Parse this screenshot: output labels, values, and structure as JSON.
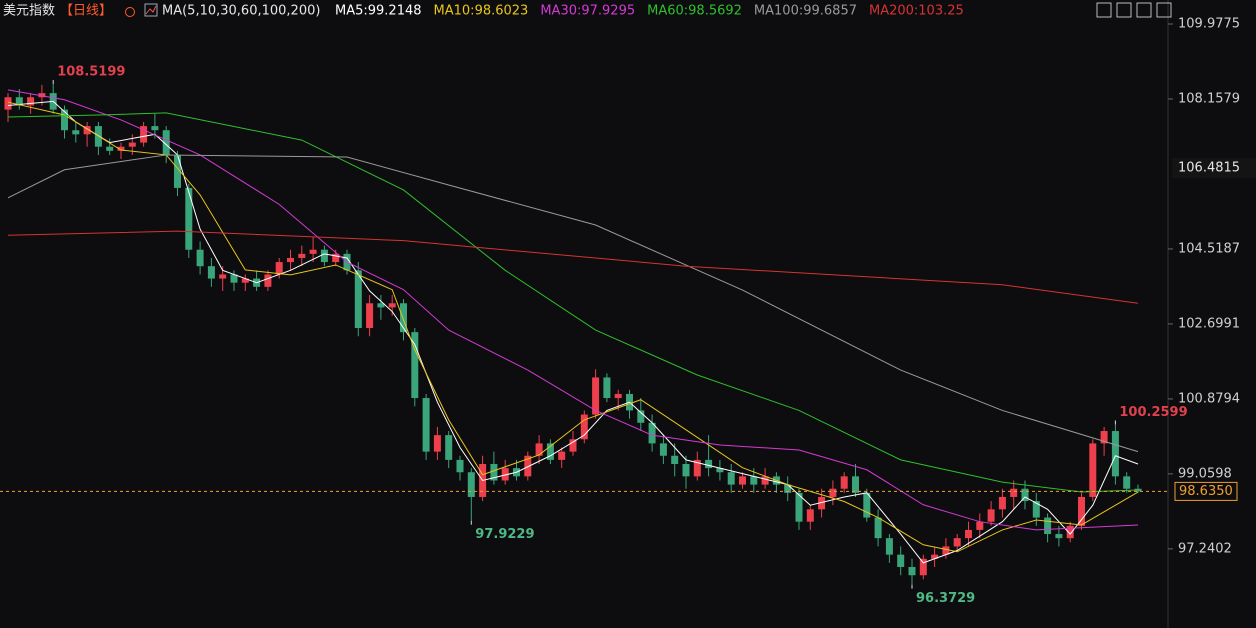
{
  "chart_data": {
    "type": "candlestick",
    "title": "美元指数",
    "period": "【日线】",
    "indicator": "MA(5,10,30,60,100,200)",
    "up_color": "#ee3f4d",
    "down_color": "#3aa57a",
    "ylim": [
      95.32,
      110.56
    ],
    "yticks": [
      109.9775,
      108.1579,
      104.5187,
      102.6991,
      100.8794,
      99.0598,
      97.2402
    ],
    "grid": false,
    "last_price": {
      "value": 98.635,
      "label": "98.6350"
    },
    "marker_price": {
      "value": 106.4815,
      "label": "106.4815"
    },
    "candles": [
      [
        107.9,
        108.3,
        107.6,
        108.2
      ],
      [
        108.2,
        108.4,
        107.9,
        108.0
      ],
      [
        108.0,
        108.3,
        107.8,
        108.2
      ],
      [
        108.2,
        108.5,
        108.0,
        108.3
      ],
      [
        108.3,
        108.5199,
        107.8,
        107.9
      ],
      [
        107.9,
        108.0,
        107.2,
        107.4
      ],
      [
        107.4,
        107.6,
        107.1,
        107.3
      ],
      [
        107.3,
        107.6,
        107.0,
        107.5
      ],
      [
        107.5,
        107.6,
        106.8,
        107.0
      ],
      [
        107.0,
        107.2,
        106.8,
        106.9
      ],
      [
        106.9,
        107.1,
        106.7,
        107.0
      ],
      [
        107.0,
        107.3,
        106.8,
        107.1
      ],
      [
        107.1,
        107.6,
        107.0,
        107.5
      ],
      [
        107.5,
        107.8,
        107.2,
        107.4
      ],
      [
        107.4,
        107.5,
        106.6,
        106.8
      ],
      [
        106.8,
        106.9,
        105.8,
        106.0
      ],
      [
        106.0,
        106.1,
        104.3,
        104.5
      ],
      [
        104.5,
        104.7,
        103.9,
        104.1
      ],
      [
        104.1,
        104.3,
        103.6,
        103.8
      ],
      [
        103.8,
        104.1,
        103.5,
        103.9
      ],
      [
        103.9,
        104.0,
        103.5,
        103.7
      ],
      [
        103.7,
        103.9,
        103.5,
        103.8
      ],
      [
        103.8,
        104.0,
        103.5,
        103.6
      ],
      [
        103.6,
        104.0,
        103.5,
        103.9
      ],
      [
        103.9,
        104.3,
        103.8,
        104.2
      ],
      [
        104.2,
        104.5,
        104.0,
        104.3
      ],
      [
        104.3,
        104.6,
        104.1,
        104.4
      ],
      [
        104.4,
        104.8,
        104.2,
        104.5
      ],
      [
        104.5,
        104.6,
        104.1,
        104.2
      ],
      [
        104.2,
        104.5,
        104.1,
        104.4
      ],
      [
        104.4,
        104.5,
        103.9,
        104.0
      ],
      [
        104.0,
        104.2,
        102.4,
        102.6
      ],
      [
        102.6,
        103.4,
        102.4,
        103.2
      ],
      [
        103.2,
        103.4,
        102.8,
        103.1
      ],
      [
        103.1,
        103.4,
        102.9,
        103.2
      ],
      [
        103.2,
        103.3,
        102.3,
        102.5
      ],
      [
        102.5,
        102.6,
        100.7,
        100.9
      ],
      [
        100.9,
        101.0,
        99.4,
        99.6
      ],
      [
        99.6,
        100.2,
        99.4,
        100.0
      ],
      [
        100.0,
        100.1,
        99.2,
        99.4
      ],
      [
        99.4,
        99.5,
        98.9,
        99.1
      ],
      [
        99.1,
        99.2,
        97.9229,
        98.5
      ],
      [
        98.5,
        99.5,
        98.4,
        99.3
      ],
      [
        99.3,
        99.6,
        98.8,
        98.9
      ],
      [
        98.9,
        99.4,
        98.8,
        99.2
      ],
      [
        99.2,
        99.4,
        98.9,
        99.0
      ],
      [
        99.0,
        99.6,
        98.9,
        99.5
      ],
      [
        99.5,
        100.0,
        99.3,
        99.8
      ],
      [
        99.8,
        99.9,
        99.3,
        99.4
      ],
      [
        99.4,
        99.7,
        99.2,
        99.6
      ],
      [
        99.6,
        100.1,
        99.5,
        99.9
      ],
      [
        99.9,
        100.6,
        99.8,
        100.5
      ],
      [
        100.5,
        101.6,
        100.4,
        101.4
      ],
      [
        101.4,
        101.5,
        100.8,
        100.9
      ],
      [
        100.9,
        101.1,
        100.6,
        101.0
      ],
      [
        101.0,
        101.1,
        100.4,
        100.6
      ],
      [
        100.6,
        100.9,
        100.1,
        100.3
      ],
      [
        100.3,
        100.5,
        99.6,
        99.8
      ],
      [
        99.8,
        100.0,
        99.3,
        99.5
      ],
      [
        99.5,
        99.8,
        99.0,
        99.3
      ],
      [
        99.3,
        99.5,
        98.7,
        99.0
      ],
      [
        99.0,
        99.6,
        98.9,
        99.4
      ],
      [
        99.4,
        100.0,
        99.0,
        99.2
      ],
      [
        99.2,
        99.4,
        98.9,
        99.1
      ],
      [
        99.1,
        99.3,
        98.6,
        98.8
      ],
      [
        98.8,
        99.1,
        98.7,
        99.0
      ],
      [
        99.0,
        99.2,
        98.6,
        98.8
      ],
      [
        98.8,
        99.2,
        98.7,
        99.0
      ],
      [
        99.0,
        99.1,
        98.6,
        98.8
      ],
      [
        98.8,
        99.0,
        98.4,
        98.6
      ],
      [
        98.6,
        98.7,
        97.7,
        97.9
      ],
      [
        97.9,
        98.3,
        97.7,
        98.2
      ],
      [
        98.2,
        98.7,
        98.0,
        98.5
      ],
      [
        98.5,
        98.9,
        98.3,
        98.7
      ],
      [
        98.7,
        99.1,
        98.6,
        99.0
      ],
      [
        99.0,
        99.3,
        98.5,
        98.6
      ],
      [
        98.6,
        98.7,
        97.9,
        98.0
      ],
      [
        98.0,
        98.2,
        97.3,
        97.5
      ],
      [
        97.5,
        97.6,
        96.9,
        97.1
      ],
      [
        97.1,
        97.3,
        96.6,
        96.8
      ],
      [
        96.8,
        97.0,
        96.3729,
        96.6
      ],
      [
        96.6,
        97.1,
        96.5,
        97.0
      ],
      [
        97.0,
        97.3,
        96.8,
        97.1
      ],
      [
        97.1,
        97.5,
        97.0,
        97.3
      ],
      [
        97.3,
        97.6,
        97.2,
        97.5
      ],
      [
        97.5,
        97.9,
        97.3,
        97.7
      ],
      [
        97.7,
        98.1,
        97.5,
        97.9
      ],
      [
        97.9,
        98.4,
        97.8,
        98.2
      ],
      [
        98.2,
        98.7,
        98.0,
        98.5
      ],
      [
        98.5,
        98.9,
        98.2,
        98.7
      ],
      [
        98.7,
        98.9,
        98.2,
        98.4
      ],
      [
        98.4,
        98.6,
        97.8,
        98.0
      ],
      [
        98.0,
        98.1,
        97.4,
        97.6
      ],
      [
        97.6,
        97.8,
        97.3,
        97.5
      ],
      [
        97.5,
        97.9,
        97.4,
        97.8
      ],
      [
        97.8,
        98.6,
        97.7,
        98.5
      ],
      [
        98.5,
        99.9,
        98.4,
        99.8
      ],
      [
        99.8,
        100.2,
        99.5,
        100.1
      ],
      [
        100.1,
        100.2599,
        98.8,
        99.0
      ],
      [
        99.0,
        99.1,
        98.6,
        98.7
      ],
      [
        98.7,
        98.8,
        98.6,
        98.635
      ]
    ],
    "series": [
      {
        "name": "MA5",
        "legend_label": "MA5:99.2148",
        "color": "#ffffff",
        "x": [
          0,
          4,
          6,
          9,
          13,
          15,
          17,
          19,
          22,
          25,
          28,
          30,
          32,
          34,
          36,
          38,
          40,
          42,
          45,
          48,
          51,
          53,
          55,
          57,
          60,
          63,
          66,
          69,
          71,
          74,
          76,
          79,
          81,
          84,
          88,
          90,
          92,
          94,
          96,
          98,
          100
        ],
        "values": [
          108.0,
          108.1,
          107.6,
          107.1,
          107.3,
          106.8,
          105.0,
          104.0,
          103.7,
          104.0,
          104.4,
          104.3,
          103.5,
          103.0,
          102.2,
          100.8,
          99.7,
          98.9,
          99.1,
          99.5,
          100.0,
          100.6,
          100.8,
          100.3,
          99.4,
          99.2,
          99.0,
          98.8,
          98.3,
          98.5,
          98.6,
          97.6,
          96.9,
          97.2,
          97.9,
          98.5,
          98.2,
          97.6,
          98.3,
          99.5,
          99.3
        ]
      },
      {
        "name": "MA10",
        "legend_label": "MA10:98.6023",
        "color": "#e8c51c",
        "x": [
          0,
          5,
          10,
          14,
          17,
          21,
          25,
          29,
          34,
          36,
          39,
          42,
          47,
          51,
          56,
          60,
          65,
          69,
          74,
          77,
          81,
          84,
          88,
          91,
          95,
          100
        ],
        "values": [
          108.08,
          107.77,
          106.92,
          106.8,
          105.83,
          104.01,
          103.89,
          104.13,
          103.53,
          102.07,
          100.37,
          99.04,
          99.52,
          100.37,
          100.86,
          100.13,
          99.21,
          98.8,
          98.39,
          98.0,
          97.34,
          97.17,
          97.7,
          97.94,
          97.82,
          98.62
        ]
      },
      {
        "name": "MA30",
        "legend_label": "MA30:97.9295",
        "color": "#d43ad4",
        "x": [
          0,
          5,
          10,
          17,
          24,
          30,
          35,
          39,
          46,
          52,
          57,
          63,
          70,
          76,
          81,
          86,
          91,
          100
        ],
        "values": [
          108.38,
          108.14,
          107.65,
          106.8,
          105.6,
          104.2,
          103.53,
          102.55,
          101.58,
          100.6,
          100.0,
          99.76,
          99.64,
          99.16,
          98.31,
          97.9,
          97.7,
          97.82
        ]
      },
      {
        "name": "MA60",
        "legend_label": "MA60:98.5692",
        "color": "#2fbf2f",
        "x": [
          0,
          8,
          14,
          26,
          35,
          44,
          52,
          61,
          70,
          79,
          88,
          95,
          100
        ],
        "values": [
          107.72,
          107.77,
          107.82,
          107.16,
          105.95,
          104.0,
          102.55,
          101.46,
          100.6,
          99.4,
          98.86,
          98.62,
          98.67
        ]
      },
      {
        "name": "MA100",
        "legend_label": "MA100:99.6857",
        "color": "#9a9a9a",
        "x": [
          0,
          5,
          14,
          30,
          39,
          52,
          65,
          79,
          88,
          100
        ],
        "values": [
          105.76,
          106.44,
          106.8,
          106.75,
          106.07,
          105.1,
          103.52,
          101.58,
          100.6,
          99.6
        ]
      },
      {
        "name": "MA200",
        "legend_label": "MA200:103.25",
        "color": "#d63333",
        "x": [
          0,
          15,
          35,
          60,
          88,
          100
        ],
        "values": [
          104.85,
          104.95,
          104.72,
          104.1,
          103.65,
          103.2
        ]
      }
    ],
    "annotations": [
      {
        "x": 4,
        "value": 108.5199,
        "color": "#e0414d"
      },
      {
        "x": 41,
        "value": 97.9229,
        "color": "#4fb886"
      },
      {
        "x": 80,
        "value": 96.3729,
        "color": "#4fb886"
      },
      {
        "x": 98,
        "value": 100.2599,
        "color": "#e0414d"
      }
    ]
  }
}
